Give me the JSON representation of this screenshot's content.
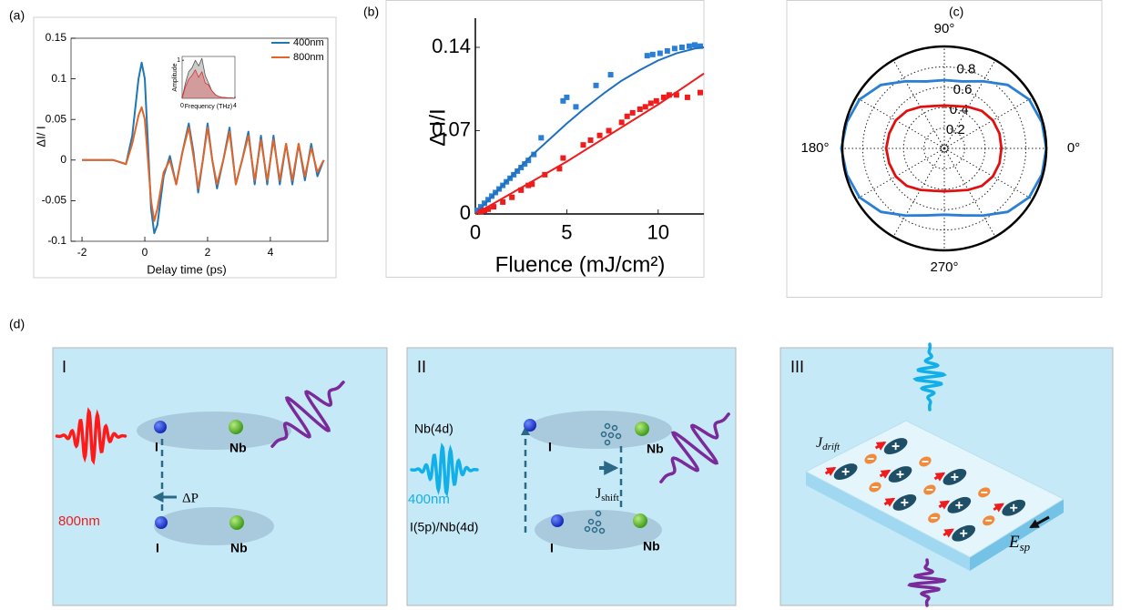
{
  "chart_data": [
    {
      "type": "line",
      "panel_label": "(a)",
      "x_label": "Delay time (ps)",
      "y_label": "ΔI/ I",
      "x": [
        -2,
        -1,
        -0.6,
        -0.4,
        -0.2,
        -0.1,
        0,
        0.1,
        0.2,
        0.3,
        0.4,
        0.6,
        0.8,
        1.0,
        1.2,
        1.4,
        1.55,
        1.7,
        1.85,
        2.0,
        2.15,
        2.3,
        2.5,
        2.7,
        2.9,
        3.1,
        3.3,
        3.5,
        3.7,
        3.9,
        4.1,
        4.3,
        4.5,
        4.7,
        4.9,
        5.1,
        5.3,
        5.5,
        5.7
      ],
      "series": [
        {
          "name": "400nm",
          "color": "#1f77b4",
          "values": [
            0,
            0,
            -0.005,
            0.03,
            0.1,
            0.12,
            0.1,
            0.02,
            -0.06,
            -0.09,
            -0.08,
            -0.02,
            0.005,
            -0.03,
            0.01,
            0.045,
            0.01,
            -0.04,
            0.0,
            0.045,
            0.0,
            -0.035,
            0.0,
            0.04,
            -0.03,
            0.0,
            0.035,
            -0.03,
            0.03,
            -0.03,
            0.03,
            -0.03,
            0.02,
            -0.03,
            0.02,
            -0.025,
            0.02,
            -0.02,
            0.0
          ]
        },
        {
          "name": "800nm",
          "color": "#e0652a",
          "values": [
            0,
            0,
            -0.005,
            0.02,
            0.055,
            0.065,
            0.05,
            0.0,
            -0.05,
            -0.075,
            -0.06,
            -0.015,
            0.0,
            -0.03,
            0.01,
            0.04,
            0.005,
            -0.035,
            0.0,
            0.04,
            0.0,
            -0.03,
            0.0,
            0.035,
            -0.03,
            0.0,
            0.03,
            -0.025,
            0.025,
            -0.025,
            0.025,
            -0.025,
            0.02,
            -0.025,
            0.02,
            -0.02,
            0.015,
            -0.015,
            0.0
          ]
        }
      ],
      "xlim": [
        -2.35,
        5.83
      ],
      "ylim": [
        -0.1,
        0.15
      ],
      "xticks": [
        -2,
        0,
        2,
        4
      ],
      "yticks": [
        -0.1,
        -0.05,
        0,
        0.05,
        0.1,
        0.15
      ],
      "legend": "upper right"
    },
    {
      "type": "area",
      "x_label": "Frequency (THz)",
      "y_label": "Amplitude",
      "x": [
        0,
        0.25,
        0.5,
        0.75,
        1,
        1.25,
        1.5,
        1.75,
        2,
        2.25,
        2.5,
        2.75,
        3,
        3.25,
        3.5,
        3.75,
        4
      ],
      "series": [
        {
          "color": "#555555",
          "values": [
            0,
            0.4,
            0.7,
            0.8,
            1.0,
            0.85,
            1.05,
            0.6,
            0.4,
            0.2,
            0.1,
            0.05,
            0.03,
            0.02,
            0.01,
            0.01,
            0
          ]
        },
        {
          "color": "#e03030",
          "values": [
            0,
            0.3,
            0.5,
            0.6,
            0.75,
            0.55,
            0.7,
            0.4,
            0.35,
            0.2,
            0.1,
            0.05,
            0.03,
            0.02,
            0.01,
            0.01,
            0
          ]
        }
      ],
      "xlim": [
        0,
        4
      ],
      "ylim": [
        0,
        1.1
      ],
      "xticks": [
        0,
        4
      ],
      "yticks": [
        1
      ]
    },
    {
      "type": "scatter",
      "panel_label": "(b)",
      "x_label": "Fluence (mJ/cm²)",
      "y_label": "Δ I/I",
      "series": [
        {
          "color": "#2a7fd4",
          "mode": "markers",
          "x": [
            0.1,
            0.3,
            0.5,
            0.7,
            0.9,
            1.1,
            1.3,
            1.5,
            1.7,
            1.9,
            2.1,
            2.3,
            2.5,
            2.7,
            2.9,
            3.2,
            3.6,
            4.8,
            5.0,
            5.5,
            6.6,
            7.4,
            9.4,
            9.7,
            10.1,
            10.5,
            10.9,
            11.3,
            11.7,
            12.0,
            12.3
          ],
          "values": [
            0.003,
            0.006,
            0.009,
            0.012,
            0.015,
            0.018,
            0.021,
            0.024,
            0.027,
            0.03,
            0.033,
            0.036,
            0.039,
            0.042,
            0.045,
            0.05,
            0.064,
            0.095,
            0.098,
            0.09,
            0.108,
            0.117,
            0.133,
            0.134,
            0.135,
            0.137,
            0.139,
            0.14,
            0.141,
            0.142,
            0.141
          ]
        },
        {
          "color": "#1f6fc0",
          "mode": "line",
          "x": [
            0,
            1,
            2,
            3,
            4,
            5,
            6,
            7,
            8,
            9,
            10,
            11,
            12,
            12.5
          ],
          "values": [
            0,
            0.016,
            0.032,
            0.048,
            0.062,
            0.076,
            0.089,
            0.101,
            0.112,
            0.121,
            0.129,
            0.135,
            0.139,
            0.14
          ]
        },
        {
          "color": "#ee1c1c",
          "mode": "markers",
          "x": [
            0.3,
            0.5,
            0.7,
            1.0,
            1.5,
            2.0,
            2.5,
            2.9,
            3.1,
            3.8,
            4.6,
            4.8,
            5.9,
            6.3,
            6.8,
            7.3,
            8.0,
            8.3,
            8.6,
            9.0,
            9.3,
            9.6,
            9.9,
            10.3,
            10.6,
            11.0,
            11.6,
            12.3
          ],
          "values": [
            0.002,
            0.003,
            0.004,
            0.006,
            0.01,
            0.014,
            0.02,
            0.024,
            0.025,
            0.033,
            0.038,
            0.047,
            0.058,
            0.062,
            0.066,
            0.07,
            0.077,
            0.082,
            0.085,
            0.088,
            0.09,
            0.093,
            0.095,
            0.098,
            0.1,
            0.1,
            0.098,
            0.102
          ]
        },
        {
          "color": "#ee1c1c",
          "mode": "line",
          "x": [
            0,
            5,
            10,
            12.5
          ],
          "values": [
            0,
            0.044,
            0.092,
            0.118
          ]
        }
      ],
      "xlim": [
        0,
        12.5
      ],
      "ylim": [
        0,
        0.14
      ],
      "xticks": [
        0,
        5,
        10
      ],
      "yticks": [
        0,
        0.07,
        0.14
      ]
    },
    {
      "type": "polar",
      "panel_label": "(c)",
      "theta": [
        0,
        15,
        30,
        45,
        60,
        75,
        90,
        105,
        120,
        135,
        150,
        165,
        180,
        195,
        210,
        225,
        240,
        255,
        270,
        285,
        300,
        315,
        330,
        345
      ],
      "series": [
        {
          "color": "#2a7fd4",
          "values": [
            1.0,
            0.99,
            0.96,
            0.88,
            0.76,
            0.68,
            0.67,
            0.68,
            0.76,
            0.88,
            0.96,
            0.99,
            1.01,
            0.99,
            0.96,
            0.88,
            0.76,
            0.68,
            0.65,
            0.68,
            0.76,
            0.88,
            0.96,
            0.99
          ]
        },
        {
          "color": "#e01010",
          "values": [
            0.56,
            0.56,
            0.55,
            0.52,
            0.47,
            0.43,
            0.42,
            0.43,
            0.47,
            0.52,
            0.55,
            0.56,
            0.57,
            0.56,
            0.55,
            0.52,
            0.47,
            0.43,
            0.42,
            0.43,
            0.47,
            0.52,
            0.55,
            0.56
          ]
        }
      ],
      "rlim": [
        0,
        1
      ],
      "rticks": [
        0.2,
        0.4,
        0.6,
        0.8
      ],
      "theta_gridlines": [
        0,
        30,
        60,
        90,
        120,
        150,
        180,
        210,
        240,
        270,
        300,
        330
      ],
      "thetaticks": [
        {
          "value": 0,
          "label": "0°"
        },
        {
          "value": 90,
          "label": "90°"
        },
        {
          "value": 180,
          "label": "180°"
        },
        {
          "value": 270,
          "label": "270°"
        }
      ],
      "grid": true
    }
  ],
  "diagram": {
    "panel_label": "(d)",
    "panel_I": {
      "title": "I",
      "top_atoms": [
        "I",
        "Nb"
      ],
      "bottom_atoms": [
        "I",
        "Nb"
      ],
      "shift": "ΔP",
      "pump": "800nm"
    },
    "panel_II": {
      "title": "II",
      "top_level": "Nb(4d)",
      "bottom_level": "I(5p)/Nb(4d)",
      "top_atoms": [
        "I",
        "Nb"
      ],
      "bottom_atoms": [
        "I",
        "Nb"
      ],
      "current": {
        "main": "J",
        "sub": "shift"
      },
      "pump": "400nm"
    },
    "panel_III": {
      "title": "III",
      "current": {
        "main": "J",
        "sub": "drift"
      },
      "field": {
        "main": "E",
        "sub": "sp"
      }
    }
  }
}
